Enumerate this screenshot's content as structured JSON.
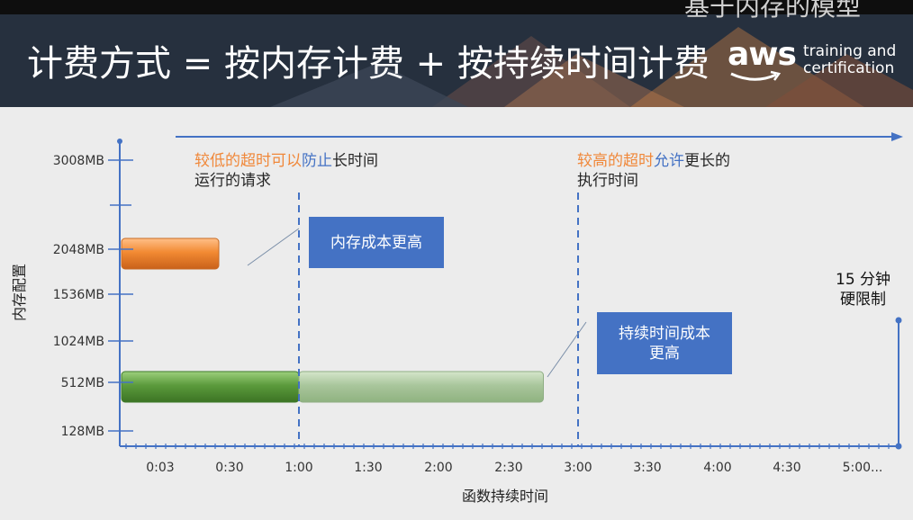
{
  "header": {
    "title": "计费方式 = 按内存计费 + 按持续时间计费",
    "top_text": "基于内存的模型",
    "logo_main": "aws",
    "logo_line1": "training and",
    "logo_line2": "certification"
  },
  "chart_data": {
    "type": "bar",
    "orientation": "horizontal",
    "xlabel": "函数持续时间",
    "ylabel": "内存配置",
    "x_ticks": [
      "0:03",
      "0:30",
      "1:00",
      "1:30",
      "2:00",
      "2:30",
      "3:00",
      "3:30",
      "4:00",
      "4:30",
      "5:00..."
    ],
    "y_ticks": [
      "128MB",
      "512MB",
      "1024MB",
      "1536MB",
      "2048MB",
      "3008MB"
    ],
    "bars": [
      {
        "memory": "2048MB",
        "start": "0:00",
        "end": "0:27",
        "color": "#f0883a"
      },
      {
        "memory": "512MB",
        "start": "0:00",
        "end": "1:00",
        "color": "#5b9a3c"
      },
      {
        "memory": "512MB",
        "start": "1:00",
        "end": "2:45",
        "color": "#a9c69c"
      }
    ],
    "reference_lines": [
      {
        "at": "1:00",
        "style": "dashed"
      },
      {
        "at": "3:00",
        "style": "dashed"
      }
    ],
    "hard_limit": "15:00",
    "annotations": {
      "low_timeout": {
        "part1": "较低的超时可以",
        "part2": "防止",
        "part3": "长时间",
        "line2": "运行的请求"
      },
      "high_timeout": {
        "part1": "较高的超时",
        "part2": "允许",
        "part3": "更长的",
        "line2": "执行时间"
      },
      "memory_cost": "内存成本更高",
      "duration_cost_line1": "持续时间成本",
      "duration_cost_line2": "更高",
      "hard_limit_line1": "15 分钟",
      "hard_limit_line2": "硬限制"
    }
  }
}
